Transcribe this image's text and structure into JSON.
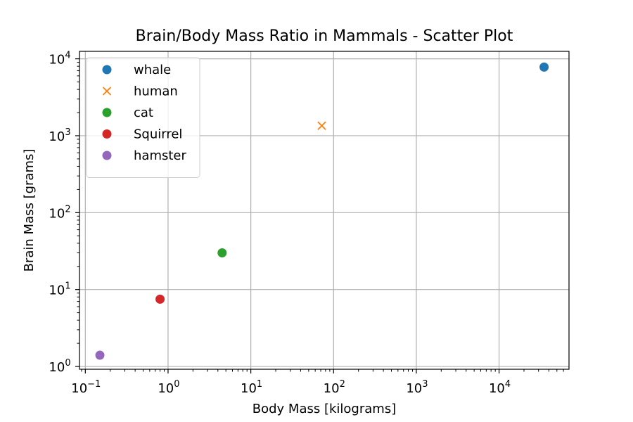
{
  "chart_data": {
    "type": "scatter",
    "title": "Brain/Body Mass Ratio in Mammals - Scatter Plot",
    "xlabel": "Body Mass [kilograms]",
    "ylabel": "Brain Mass [grams]",
    "xscale": "log",
    "yscale": "log",
    "xlim": [
      0.085,
      70000
    ],
    "ylim": [
      0.92,
      12500
    ],
    "xticks": [
      0.1,
      1,
      10,
      100,
      1000,
      10000
    ],
    "xtick_labels": [
      {
        "base": "10",
        "exp": "−1"
      },
      {
        "base": "10",
        "exp": "0"
      },
      {
        "base": "10",
        "exp": "1"
      },
      {
        "base": "10",
        "exp": "2"
      },
      {
        "base": "10",
        "exp": "3"
      },
      {
        "base": "10",
        "exp": "4"
      }
    ],
    "yticks": [
      1,
      10,
      100,
      1000,
      10000
    ],
    "ytick_labels": [
      {
        "base": "10",
        "exp": "0"
      },
      {
        "base": "10",
        "exp": "1"
      },
      {
        "base": "10",
        "exp": "2"
      },
      {
        "base": "10",
        "exp": "3"
      },
      {
        "base": "10",
        "exp": "4"
      }
    ],
    "grid": true,
    "legend_position": "top-left",
    "series": [
      {
        "name": "whale",
        "marker": "circle",
        "color": "#1f77b4",
        "points": [
          {
            "x": 35000,
            "y": 7800
          }
        ]
      },
      {
        "name": "human",
        "marker": "x",
        "color": "#ff7f0e",
        "points": [
          {
            "x": 72,
            "y": 1350
          }
        ]
      },
      {
        "name": "cat",
        "marker": "circle",
        "color": "#2ca02c",
        "points": [
          {
            "x": 4.5,
            "y": 30
          }
        ]
      },
      {
        "name": "Squirrel",
        "marker": "circle",
        "color": "#d62728",
        "points": [
          {
            "x": 0.8,
            "y": 7.5
          }
        ]
      },
      {
        "name": "hamster",
        "marker": "circle",
        "color": "#9467bd",
        "points": [
          {
            "x": 0.15,
            "y": 1.4
          }
        ]
      }
    ]
  }
}
